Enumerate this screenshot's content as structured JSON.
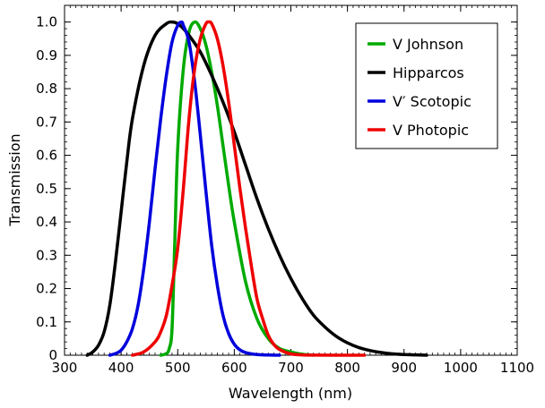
{
  "chart_data": {
    "type": "line",
    "title": "",
    "xlabel": "Wavelength (nm)",
    "ylabel": "Transmission",
    "xlim": [
      300,
      1100
    ],
    "ylim": [
      0,
      1.05
    ],
    "xticks": [
      300,
      400,
      500,
      600,
      700,
      800,
      900,
      1000,
      1100
    ],
    "xtick_labels": [
      "300",
      "400",
      "500",
      "600",
      "700",
      "800",
      "900",
      "1000",
      "1100"
    ],
    "yticks": [
      0,
      0.1,
      0.2,
      0.3,
      0.4,
      0.5,
      0.6,
      0.7,
      0.8,
      0.9,
      1.0
    ],
    "ytick_labels": [
      "0",
      "0.1",
      "0.2",
      "0.3",
      "0.4",
      "0.5",
      "0.6",
      "0.7",
      "0.8",
      "0.9",
      "1.0"
    ],
    "grid": false,
    "legend_position": "top-right",
    "series": [
      {
        "name": "V Johnson",
        "color": "#00aa00",
        "x": [
          470,
          480,
          485,
          490,
          495,
          500,
          510,
          520,
          530,
          540,
          550,
          560,
          570,
          580,
          590,
          600,
          620,
          640,
          660,
          680,
          700,
          720,
          740
        ],
        "y": [
          0.0,
          0.005,
          0.02,
          0.08,
          0.35,
          0.62,
          0.86,
          0.97,
          1.0,
          0.98,
          0.93,
          0.85,
          0.75,
          0.63,
          0.51,
          0.4,
          0.22,
          0.11,
          0.05,
          0.02,
          0.01,
          0.003,
          0.0
        ]
      },
      {
        "name": "Hipparcos",
        "color": "#000000",
        "x": [
          340,
          350,
          360,
          370,
          380,
          390,
          400,
          410,
          420,
          440,
          460,
          480,
          490,
          500,
          510,
          520,
          540,
          560,
          580,
          600,
          620,
          640,
          660,
          680,
          700,
          720,
          740,
          760,
          780,
          800,
          820,
          840,
          860,
          880,
          900,
          920,
          940
        ],
        "y": [
          0.0,
          0.01,
          0.03,
          0.07,
          0.15,
          0.28,
          0.43,
          0.58,
          0.71,
          0.87,
          0.96,
          0.995,
          1.0,
          0.995,
          0.98,
          0.96,
          0.91,
          0.84,
          0.76,
          0.67,
          0.57,
          0.47,
          0.38,
          0.3,
          0.23,
          0.17,
          0.12,
          0.085,
          0.057,
          0.037,
          0.023,
          0.014,
          0.008,
          0.004,
          0.002,
          0.001,
          0.0
        ]
      },
      {
        "name": "V′ Scotopic",
        "color": "#0000dd",
        "x": [
          380,
          390,
          400,
          410,
          420,
          430,
          440,
          450,
          460,
          470,
          480,
          490,
          500,
          507,
          510,
          520,
          530,
          540,
          550,
          560,
          570,
          580,
          590,
          600,
          610,
          620,
          640,
          660,
          680
        ],
        "y": [
          0.0,
          0.005,
          0.015,
          0.04,
          0.08,
          0.15,
          0.26,
          0.4,
          0.56,
          0.71,
          0.84,
          0.94,
          0.99,
          1.0,
          0.99,
          0.94,
          0.82,
          0.66,
          0.49,
          0.33,
          0.21,
          0.12,
          0.065,
          0.033,
          0.016,
          0.008,
          0.002,
          0.0005,
          0.0
        ]
      },
      {
        "name": "V Photopic",
        "color": "#ee0000",
        "x": [
          420,
          440,
          460,
          470,
          480,
          490,
          500,
          510,
          520,
          530,
          540,
          550,
          555,
          560,
          570,
          580,
          590,
          600,
          610,
          620,
          630,
          640,
          650,
          660,
          670,
          680,
          700,
          720,
          740,
          780,
          830
        ],
        "y": [
          0.0,
          0.01,
          0.04,
          0.07,
          0.12,
          0.21,
          0.32,
          0.5,
          0.71,
          0.86,
          0.95,
          0.995,
          1.0,
          0.995,
          0.95,
          0.87,
          0.76,
          0.63,
          0.5,
          0.38,
          0.27,
          0.17,
          0.11,
          0.06,
          0.032,
          0.017,
          0.004,
          0.001,
          0.0003,
          0.0,
          0.0
        ]
      }
    ]
  }
}
